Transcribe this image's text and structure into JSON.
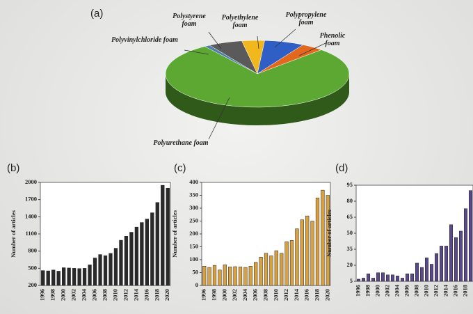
{
  "chart_data": [
    {
      "type": "pie",
      "panel": "(a)",
      "categories": [
        "Polyurethane foam",
        "Polyvinylchloride foam",
        "Polystyrene foam",
        "Polyethylene foam",
        "Polypropylene foam",
        "Phenolic foam"
      ],
      "values": [
        78,
        1,
        6,
        4,
        7,
        4
      ],
      "colors": [
        "#5da832",
        "#4d7fa8",
        "#5a5a5a",
        "#f0b81c",
        "#2f5fc4",
        "#e2681e"
      ]
    },
    {
      "type": "bar",
      "panel": "(b)",
      "ylabel": "Number of articles",
      "categories": [
        "1996",
        null,
        "1998",
        null,
        "2000",
        null,
        "2002",
        null,
        "2004",
        null,
        "2006",
        null,
        "2008",
        null,
        "2010",
        null,
        "2012",
        null,
        "2014",
        null,
        "2016",
        null,
        "2018",
        null,
        "2020"
      ],
      "values": [
        460,
        455,
        470,
        450,
        510,
        505,
        500,
        495,
        500,
        560,
        680,
        740,
        720,
        760,
        850,
        990,
        1060,
        1130,
        1220,
        1300,
        1360,
        1470,
        1650,
        1950,
        1900
      ],
      "color": "#2a2a2a",
      "ylim": [
        200,
        2000
      ],
      "yticks": [
        200,
        500,
        800,
        1100,
        1400,
        1700,
        2000
      ]
    },
    {
      "type": "bar",
      "panel": "(c)",
      "ylabel": "Number of articles",
      "categories": [
        "1996",
        null,
        "1998",
        null,
        "2000",
        null,
        "2002",
        null,
        "2004",
        null,
        "2006",
        null,
        "2008",
        null,
        "2010",
        null,
        "2012",
        null,
        "2014",
        null,
        "2016",
        null,
        "2018",
        null,
        "2020"
      ],
      "values": [
        75,
        70,
        78,
        60,
        80,
        72,
        73,
        72,
        70,
        75,
        90,
        110,
        125,
        115,
        135,
        125,
        170,
        175,
        220,
        255,
        270,
        250,
        340,
        370,
        350
      ],
      "color": "#d9a040",
      "ylim": [
        0,
        400
      ],
      "yticks": [
        0,
        50,
        100,
        150,
        200,
        250,
        300,
        350,
        400
      ]
    },
    {
      "type": "bar",
      "panel": "(d)",
      "ylabel": "Number of articles",
      "categories": [
        "1996",
        null,
        "1998",
        null,
        "2000",
        null,
        "2002",
        null,
        "2004",
        null,
        "2006",
        null,
        "2008",
        null,
        "2010",
        null,
        "2012",
        null,
        "2014",
        null,
        "2016",
        null,
        "2018",
        null
      ],
      "values": [
        7,
        8,
        12,
        8,
        13,
        13,
        11,
        11,
        10,
        8,
        12,
        12,
        22,
        18,
        27,
        21,
        31,
        38,
        38,
        58,
        46,
        52,
        73,
        90
      ],
      "color": "#5a4a8c",
      "ylim": [
        5,
        95
      ],
      "yticks": [
        5,
        20,
        35,
        50,
        65,
        80,
        95
      ]
    }
  ]
}
